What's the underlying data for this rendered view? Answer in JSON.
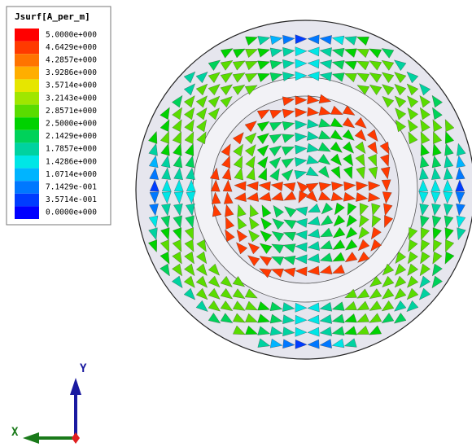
{
  "legend": {
    "title": "Jsurf[A_per_m]",
    "items": [
      {
        "label": "5.0000e+000",
        "color": "#ff0000"
      },
      {
        "label": "4.6429e+000",
        "color": "#ff3a00"
      },
      {
        "label": "4.2857e+000",
        "color": "#ff7400"
      },
      {
        "label": "3.9286e+000",
        "color": "#ffae00"
      },
      {
        "label": "3.5714e+000",
        "color": "#e6e600"
      },
      {
        "label": "3.2143e+000",
        "color": "#a0e600"
      },
      {
        "label": "2.8571e+000",
        "color": "#5adc00"
      },
      {
        "label": "2.5000e+000",
        "color": "#00d200"
      },
      {
        "label": "2.1429e+000",
        "color": "#00d25a"
      },
      {
        "label": "1.7857e+000",
        "color": "#00d2a0"
      },
      {
        "label": "1.4286e+000",
        "color": "#00e6e6"
      },
      {
        "label": "1.0714e+000",
        "color": "#00b4ff"
      },
      {
        "label": "7.1429e-001",
        "color": "#0078ff"
      },
      {
        "label": "3.5714e-001",
        "color": "#003cff"
      },
      {
        "label": "0.0000e+000",
        "color": "#0000ff"
      }
    ]
  },
  "axes": {
    "y": "Y",
    "x": "X"
  }
}
